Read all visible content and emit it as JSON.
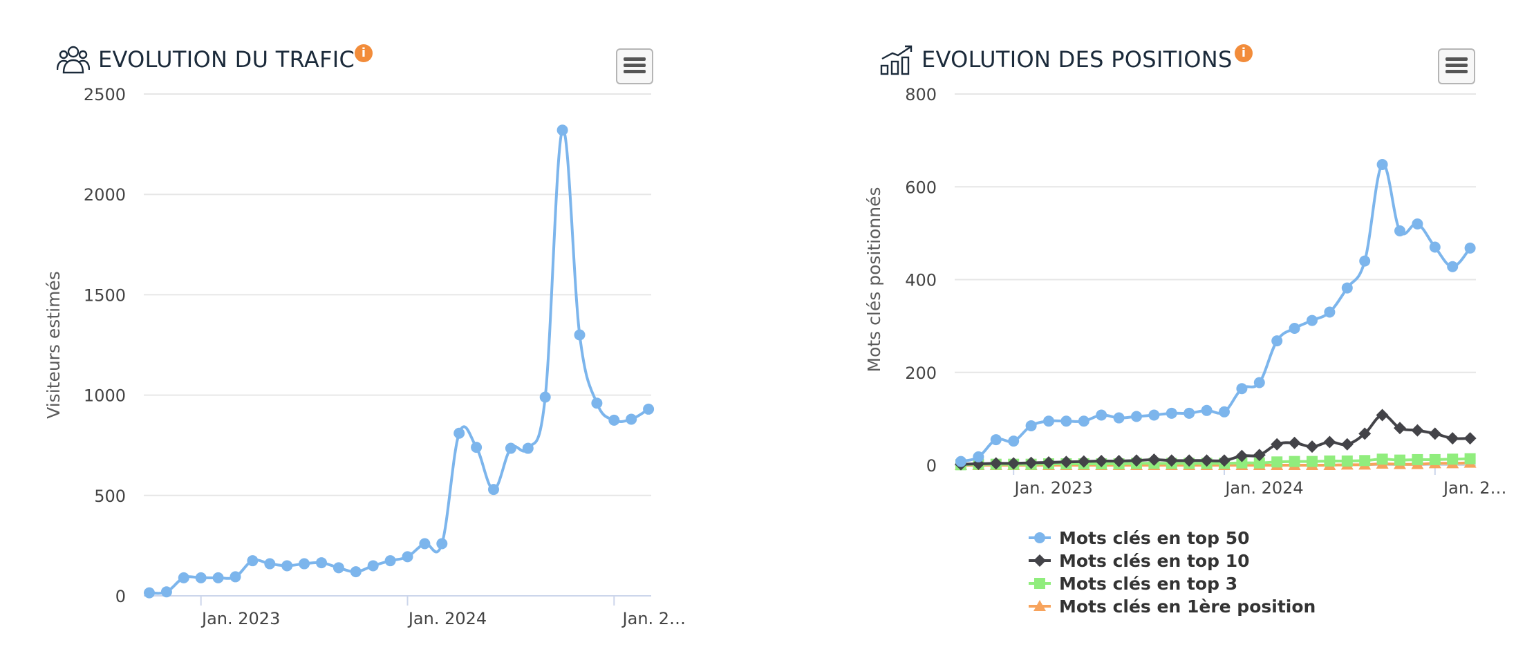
{
  "traffic": {
    "title": "EVOLUTION DU TRAFIC",
    "info_icon": "info-icon",
    "title_icon": "users-icon",
    "menu_icon": "hamburger-menu-icon",
    "chart_data": {
      "type": "line",
      "title": "EVOLUTION DU TRAFIC",
      "ylabel": "Visiteurs estimés",
      "xlabel": "",
      "ylim": [
        0,
        2500
      ],
      "yticks": [
        0,
        500,
        1000,
        1500,
        2000,
        2500
      ],
      "xtick_labels": [
        "Jan. 2023",
        "Jan. 2024",
        "Jan. 2…"
      ],
      "x": [
        "2022-10",
        "2022-11",
        "2022-12",
        "2023-01",
        "2023-02",
        "2023-03",
        "2023-04",
        "2023-05",
        "2023-06",
        "2023-07",
        "2023-08",
        "2023-09",
        "2023-10",
        "2023-11",
        "2023-12",
        "2024-01",
        "2024-02",
        "2024-03",
        "2024-04",
        "2024-05",
        "2024-06",
        "2024-07",
        "2024-08",
        "2024-09",
        "2024-10",
        "2024-11",
        "2024-12",
        "2025-01",
        "2025-02",
        "2025-03"
      ],
      "series": [
        {
          "color": "#7cb5ec",
          "marker": "circle",
          "values": [
            15,
            20,
            90,
            90,
            90,
            95,
            175,
            160,
            150,
            160,
            165,
            140,
            120,
            150,
            175,
            195,
            260,
            260,
            810,
            740,
            530,
            735,
            735,
            990,
            2320,
            1300,
            960,
            875,
            880,
            930
          ]
        }
      ]
    }
  },
  "positions": {
    "title": "EVOLUTION DES POSITIONS",
    "info_icon": "info-icon",
    "title_icon": "growth-chart-icon",
    "menu_icon": "hamburger-menu-icon",
    "chart_data": {
      "type": "line",
      "title": "EVOLUTION DES POSITIONS",
      "ylabel": "Mots clés positionnés",
      "xlabel": "",
      "ylim": [
        0,
        800
      ],
      "yticks": [
        0,
        200,
        400,
        600,
        800
      ],
      "xtick_labels": [
        "Jan. 2023",
        "Jan. 2024",
        "Jan. 2…"
      ],
      "legend_position": "bottom",
      "x": [
        "2022-10",
        "2022-11",
        "2022-12",
        "2023-01",
        "2023-02",
        "2023-03",
        "2023-04",
        "2023-05",
        "2023-06",
        "2023-07",
        "2023-08",
        "2023-09",
        "2023-10",
        "2023-11",
        "2023-12",
        "2024-01",
        "2024-02",
        "2024-03",
        "2024-04",
        "2024-05",
        "2024-06",
        "2024-07",
        "2024-08",
        "2024-09",
        "2024-10",
        "2024-11",
        "2024-12",
        "2025-01",
        "2025-02",
        "2025-03"
      ],
      "series": [
        {
          "name": "Mots clés en top 50",
          "color": "#7cb5ec",
          "marker": "circle",
          "values": [
            8,
            18,
            55,
            52,
            85,
            95,
            95,
            95,
            108,
            102,
            105,
            108,
            112,
            112,
            118,
            115,
            165,
            178,
            268,
            295,
            312,
            330,
            382,
            440,
            648,
            505,
            520,
            470,
            428,
            468
          ]
        },
        {
          "name": "Mots clés en top 10",
          "color": "#434348",
          "marker": "diamond",
          "values": [
            2,
            3,
            4,
            4,
            5,
            6,
            7,
            8,
            9,
            9,
            10,
            12,
            10,
            10,
            10,
            10,
            20,
            22,
            45,
            48,
            40,
            50,
            45,
            68,
            108,
            80,
            75,
            68,
            58,
            58
          ]
        },
        {
          "name": "Mots clés en top 3",
          "color": "#90ed7d",
          "marker": "square",
          "values": [
            1,
            2,
            2,
            2,
            2,
            3,
            3,
            3,
            3,
            3,
            4,
            4,
            4,
            4,
            4,
            4,
            5,
            5,
            7,
            8,
            8,
            9,
            9,
            10,
            13,
            11,
            12,
            12,
            13,
            14
          ]
        },
        {
          "name": "Mots clés en 1ère position",
          "color": "#f7a35c",
          "marker": "triangle",
          "values": [
            0,
            0,
            0,
            0,
            0,
            0,
            0,
            0,
            0,
            0,
            0,
            0,
            0,
            0,
            0,
            0,
            0,
            0,
            0,
            0,
            0,
            0,
            1,
            1,
            3,
            2,
            2,
            4,
            4,
            5
          ]
        }
      ]
    }
  }
}
